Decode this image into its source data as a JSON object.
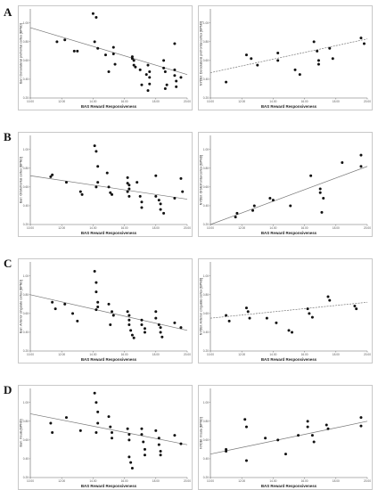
{
  "rows": [
    {
      "label": "A"
    },
    {
      "label": "B"
    },
    {
      "label": "C"
    },
    {
      "label": "D"
    }
  ],
  "chart_data": [
    {
      "type": "scatter",
      "panel": "A-left",
      "xlabel": "BAS Reward Responsiveness",
      "ylabel": "Bari: Dorsolateral prefrontal cortex [BPND]",
      "xlim": [
        10.0,
        20.0
      ],
      "ylim": [
        0.2,
        1.15
      ],
      "x_ticks": [
        "10.00",
        "12.00",
        "14.00",
        "16.00",
        "18.00",
        "20.00"
      ],
      "y_ticks": [
        "0.20",
        "0.40",
        "0.60",
        "0.80",
        "1.00"
      ],
      "trendline": {
        "style": "solid",
        "start": [
          10.0,
          0.95
        ],
        "end": [
          20.0,
          0.45
        ]
      },
      "x": [
        11.7,
        12.2,
        12.8,
        13.0,
        14.0,
        14.2,
        14.1,
        14.3,
        14.8,
        15.0,
        15.3,
        15.3,
        15.4,
        16.5,
        16.5,
        16.6,
        16.6,
        16.7,
        17.0,
        17.1,
        17.4,
        17.5,
        17.5,
        17.6,
        17.6,
        17.6,
        18.5,
        18.5,
        18.6,
        18.7,
        18.6,
        19.2,
        19.2,
        19.2,
        19.3,
        19.3,
        19.6
      ],
      "y": [
        0.8,
        0.82,
        0.7,
        0.7,
        1.1,
        1.06,
        0.8,
        0.73,
        0.66,
        0.48,
        0.74,
        0.67,
        0.56,
        0.64,
        0.62,
        0.6,
        0.55,
        0.53,
        0.5,
        0.34,
        0.45,
        0.28,
        0.55,
        0.48,
        0.42,
        0.35,
        0.6,
        0.52,
        0.48,
        0.34,
        0.3,
        0.78,
        0.5,
        0.44,
        0.38,
        0.32,
        0.42
      ]
    },
    {
      "type": "scatter",
      "panel": "A-right",
      "xlabel": "BAS Reward Responsiveness",
      "ylabel": "NYDBI: Dorsolateral prefrontal cortex [BPND]",
      "xlim": [
        10.0,
        20.0
      ],
      "ylim": [
        0.2,
        1.15
      ],
      "x_ticks": [
        "10.00",
        "12.00",
        "14.00",
        "16.00",
        "18.00",
        "20.00"
      ],
      "y_ticks": [
        "0.20",
        "0.40",
        "0.60",
        "0.80",
        "1.00"
      ],
      "trendline": {
        "style": "dashed",
        "start": [
          10.0,
          0.47
        ],
        "end": [
          20.0,
          0.83
        ]
      },
      "x": [
        11.0,
        12.3,
        12.6,
        13.0,
        14.3,
        14.3,
        15.4,
        15.7,
        16.6,
        16.8,
        16.9,
        16.9,
        17.6,
        17.8,
        19.6,
        19.8
      ],
      "y": [
        0.37,
        0.66,
        0.62,
        0.55,
        0.68,
        0.6,
        0.5,
        0.45,
        0.8,
        0.7,
        0.6,
        0.56,
        0.73,
        0.62,
        0.84,
        0.78
      ]
    },
    {
      "type": "scatter",
      "panel": "B-left",
      "xlabel": "BAS Reward Responsiveness",
      "ylabel": "Bari: Orbitofrontal cortex [BPND]",
      "xlim": [
        10.0,
        20.0
      ],
      "ylim": [
        0.2,
        1.15
      ],
      "x_ticks": [
        "10.00",
        "12.00",
        "14.00",
        "16.00",
        "18.00",
        "20.00"
      ],
      "y_ticks": [
        "0.20",
        "0.40",
        "0.60",
        "0.80",
        "1.00"
      ],
      "trendline": {
        "style": "solid",
        "start": [
          10.0,
          0.72
        ],
        "end": [
          20.0,
          0.47
        ]
      },
      "x": [
        11.3,
        11.4,
        12.3,
        13.2,
        13.3,
        14.1,
        14.2,
        14.3,
        14.3,
        14.2,
        14.9,
        15.0,
        15.1,
        15.2,
        16.2,
        16.2,
        16.3,
        16.3,
        16.2,
        16.3,
        16.8,
        17.0,
        17.1,
        17.1,
        18.0,
        18.0,
        18.2,
        18.3,
        18.3,
        18.5,
        19.6,
        19.2,
        19.7
      ],
      "y": [
        0.71,
        0.73,
        0.65,
        0.55,
        0.52,
        1.04,
        0.98,
        0.82,
        0.65,
        0.6,
        0.75,
        0.6,
        0.54,
        0.52,
        0.7,
        0.64,
        0.62,
        0.58,
        0.55,
        0.5,
        0.65,
        0.5,
        0.44,
        0.38,
        0.72,
        0.5,
        0.46,
        0.42,
        0.36,
        0.32,
        0.69,
        0.48,
        0.55
      ]
    },
    {
      "type": "scatter",
      "panel": "B-right",
      "xlabel": "BAS Reward Responsiveness",
      "ylabel": "NYDBI: Orbitofrontal cortex [BPND]",
      "xlim": [
        10.0,
        20.0
      ],
      "ylim": [
        0.2,
        1.15
      ],
      "x_ticks": [
        "10.00",
        "12.00",
        "14.00",
        "16.00",
        "18.00",
        "20.00"
      ],
      "y_ticks": [
        "0.20",
        "0.40",
        "0.60",
        "0.80",
        "1.00"
      ],
      "trendline": {
        "style": "solid",
        "start": [
          10.0,
          0.2
        ],
        "end": [
          20.0,
          0.82
        ]
      },
      "x": [
        11.7,
        11.6,
        12.8,
        12.7,
        13.8,
        14.0,
        15.1,
        16.4,
        17.0,
        17.0,
        17.2,
        17.1,
        18.4,
        19.6,
        19.6
      ],
      "y": [
        0.32,
        0.28,
        0.4,
        0.35,
        0.48,
        0.46,
        0.4,
        0.72,
        0.58,
        0.54,
        0.48,
        0.33,
        0.86,
        0.94,
        0.82
      ]
    },
    {
      "type": "scatter",
      "panel": "C-left",
      "xlabel": "BAS Reward Responsiveness",
      "ylabel": "Bari: Anterior cingulate cortex [BPND]",
      "xlim": [
        10.0,
        20.0
      ],
      "ylim": [
        0.2,
        1.15
      ],
      "x_ticks": [
        "10.00",
        "12.00",
        "14.00",
        "16.00",
        "18.00",
        "20.00"
      ],
      "y_ticks": [
        "0.20",
        "0.40",
        "0.60",
        "0.80",
        "1.00"
      ],
      "trendline": {
        "style": "solid",
        "start": [
          10.0,
          0.8
        ],
        "end": [
          20.0,
          0.42
        ]
      },
      "x": [
        11.4,
        11.6,
        12.2,
        12.7,
        13.0,
        14.1,
        14.2,
        14.2,
        14.3,
        14.3,
        14.2,
        15.0,
        15.2,
        15.3,
        15.1,
        16.2,
        16.3,
        16.3,
        16.3,
        16.4,
        16.5,
        16.6,
        17.1,
        17.1,
        17.3,
        17.3,
        18.0,
        18.0,
        18.2,
        18.3,
        18.3,
        18.4,
        19.2,
        19.6
      ],
      "y": [
        0.72,
        0.65,
        0.7,
        0.6,
        0.52,
        1.05,
        0.93,
        0.83,
        0.72,
        0.67,
        0.64,
        0.7,
        0.62,
        0.58,
        0.48,
        0.62,
        0.58,
        0.53,
        0.48,
        0.42,
        0.37,
        0.34,
        0.53,
        0.48,
        0.44,
        0.4,
        0.62,
        0.55,
        0.48,
        0.45,
        0.4,
        0.35,
        0.5,
        0.45
      ]
    },
    {
      "type": "scatter",
      "panel": "C-right",
      "xlabel": "BAS Reward Responsiveness",
      "ylabel": "NYDBI: Anterior cingulate cortex [BPND]",
      "xlim": [
        10.0,
        20.0
      ],
      "ylim": [
        0.2,
        1.15
      ],
      "x_ticks": [
        "10.00",
        "12.00",
        "14.00",
        "16.00",
        "18.00",
        "20.00"
      ],
      "y_ticks": [
        "0.20",
        "0.40",
        "0.60",
        "0.80",
        "1.00"
      ],
      "trendline": {
        "style": "dashed",
        "start": [
          10.0,
          0.55
        ],
        "end": [
          20.0,
          0.72
        ]
      },
      "x": [
        11.0,
        11.2,
        12.3,
        12.4,
        12.5,
        13.6,
        14.2,
        15.0,
        15.2,
        16.2,
        16.3,
        16.5,
        17.5,
        17.6,
        19.2,
        19.3
      ],
      "y": [
        0.58,
        0.52,
        0.66,
        0.62,
        0.55,
        0.55,
        0.5,
        0.42,
        0.4,
        0.65,
        0.6,
        0.56,
        0.78,
        0.74,
        0.68,
        0.65
      ]
    },
    {
      "type": "scatter",
      "panel": "D-left",
      "xlabel": "BAS Reward Responsiveness",
      "ylabel": "Bari: Insula [BPND]",
      "xlim": [
        10.0,
        20.0
      ],
      "ylim": [
        0.2,
        1.15
      ],
      "x_ticks": [
        "10.00",
        "12.00",
        "14.00",
        "16.00",
        "18.00",
        "20.00"
      ],
      "y_ticks": [
        "0.20",
        "0.40",
        "0.60",
        "0.80",
        "1.00"
      ],
      "trendline": {
        "style": "solid",
        "start": [
          10.0,
          0.88
        ],
        "end": [
          20.0,
          0.55
        ]
      },
      "x": [
        11.3,
        11.4,
        12.3,
        13.2,
        14.1,
        14.2,
        14.3,
        14.3,
        14.2,
        15.0,
        15.1,
        15.2,
        15.2,
        16.2,
        16.3,
        16.3,
        16.3,
        16.4,
        16.5,
        17.1,
        17.1,
        17.2,
        17.3,
        17.3,
        18.0,
        18.2,
        18.2,
        18.3,
        18.3,
        19.2,
        19.6
      ],
      "y": [
        0.78,
        0.68,
        0.84,
        0.7,
        1.1,
        1.0,
        0.9,
        0.78,
        0.68,
        0.85,
        0.74,
        0.68,
        0.62,
        0.72,
        0.66,
        0.6,
        0.42,
        0.36,
        0.3,
        0.72,
        0.66,
        0.58,
        0.5,
        0.44,
        0.7,
        0.62,
        0.55,
        0.48,
        0.44,
        0.65,
        0.56
      ]
    },
    {
      "type": "scatter",
      "panel": "D-right",
      "xlabel": "BAS Reward Responsiveness",
      "ylabel": "NYDBI: Insula [BPND]",
      "xlim": [
        10.0,
        20.0
      ],
      "ylim": [
        0.2,
        1.15
      ],
      "x_ticks": [
        "10.00",
        "12.00",
        "14.00",
        "16.00",
        "18.00",
        "20.00"
      ],
      "y_ticks": [
        "0.20",
        "0.40",
        "0.60",
        "0.80",
        "1.00"
      ],
      "trendline": {
        "style": "solid",
        "start": [
          10.0,
          0.45
        ],
        "end": [
          20.0,
          0.8
        ]
      },
      "x": [
        11.0,
        11.0,
        12.2,
        12.3,
        12.3,
        13.5,
        14.3,
        14.8,
        15.6,
        16.2,
        16.2,
        16.5,
        16.6,
        17.4,
        17.5,
        19.6,
        19.6
      ],
      "y": [
        0.5,
        0.48,
        0.82,
        0.74,
        0.38,
        0.62,
        0.6,
        0.45,
        0.65,
        0.8,
        0.74,
        0.65,
        0.58,
        0.76,
        0.72,
        0.84,
        0.75
      ]
    }
  ]
}
